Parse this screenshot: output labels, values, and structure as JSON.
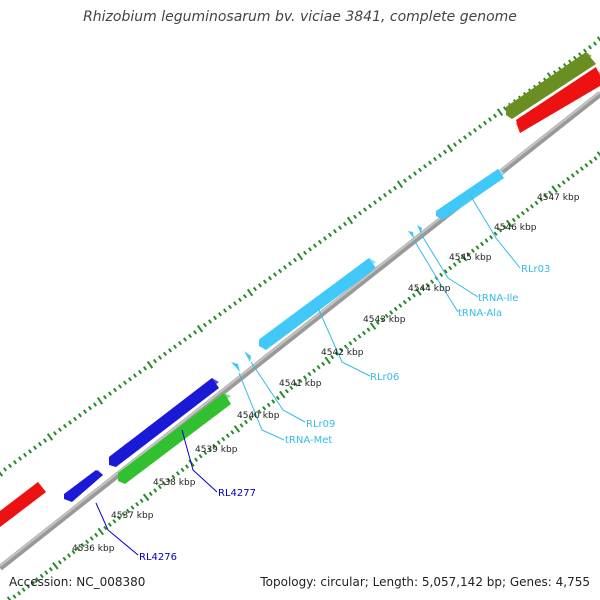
{
  "title": "Rhizobium leguminosarum bv. viciae 3841, complete genome",
  "footer": {
    "accession": "Accession: NC_008380",
    "summary": "Topology: circular; Length: 5,057,142 bp; Genes: 4,755"
  },
  "scale_labels": [
    "4536 kbp",
    "4537 kbp",
    "4538 kbp",
    "4539 kbp",
    "4540 kbp",
    "4541 kbp",
    "4542 kbp",
    "4543 kbp",
    "4544 kbp",
    "4545 kbp",
    "4546 kbp",
    "4547 kbp"
  ],
  "feature_labels": [
    {
      "text": "RL4276",
      "color": "#0000cc"
    },
    {
      "text": "RL4277",
      "color": "#0000cc"
    },
    {
      "text": "tRNA-Met",
      "color": "#33bbe8"
    },
    {
      "text": "RLr09",
      "color": "#33bbe8"
    },
    {
      "text": "RLr06",
      "color": "#33bbe8"
    },
    {
      "text": "tRNA-Ala",
      "color": "#33bbe8"
    },
    {
      "text": "tRNA-Ile",
      "color": "#33bbe8"
    },
    {
      "text": "RLr03",
      "color": "#33bbe8"
    }
  ],
  "colors": {
    "backbone": "#888888",
    "tick": "#2a8a2a",
    "cds_forward": "#1a1ad6",
    "cds_reverse": "#30c030",
    "rrna": "#40c8f8",
    "red_feature": "#ee1111",
    "olive_feature": "#6b8e23"
  }
}
